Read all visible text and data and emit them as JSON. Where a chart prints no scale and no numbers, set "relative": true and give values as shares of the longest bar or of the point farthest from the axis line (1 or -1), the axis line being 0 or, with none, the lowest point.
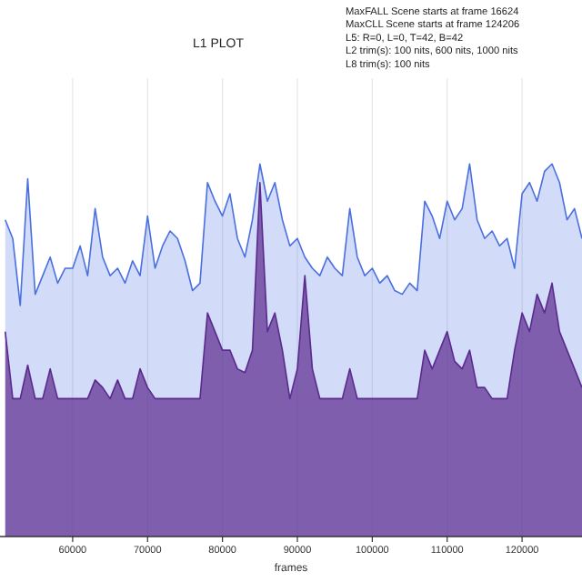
{
  "chart_data": {
    "type": "area",
    "title": "L1 PLOT",
    "xlabel": "frames",
    "relative": true,
    "grid": "x",
    "annotations": [
      "MaxFALL Scene starts at frame 16624",
      "MaxCLL Scene starts at frame 124206",
      "L5: R=0, L=0, T=42, B=42",
      "L2 trim(s): 100 nits, 600 nits, 1000 nits",
      "L8 trim(s): 100 nits"
    ],
    "xlim": [
      50300,
      128000
    ],
    "xticks": [
      60000,
      70000,
      80000,
      90000,
      100000,
      110000,
      120000
    ],
    "x": [
      51000,
      52000,
      53000,
      54000,
      55000,
      56000,
      57000,
      58000,
      59000,
      60000,
      61000,
      62000,
      63000,
      64000,
      65000,
      66000,
      67000,
      68000,
      69000,
      70000,
      71000,
      72000,
      73000,
      74000,
      75000,
      76000,
      77000,
      78000,
      79000,
      80000,
      81000,
      82000,
      83000,
      84000,
      85000,
      86000,
      87000,
      88000,
      89000,
      90000,
      91000,
      92000,
      93000,
      94000,
      95000,
      96000,
      97000,
      98000,
      99000,
      100000,
      101000,
      102000,
      103000,
      104000,
      105000,
      106000,
      107000,
      108000,
      109000,
      110000,
      111000,
      112000,
      113000,
      114000,
      115000,
      116000,
      117000,
      118000,
      119000,
      120000,
      121000,
      122000,
      123000,
      124000,
      125000,
      126000,
      127000,
      128000
    ],
    "series": [
      {
        "color": "#4a6fe0",
        "values": [
          0.85,
          0.8,
          0.62,
          0.96,
          0.65,
          0.7,
          0.75,
          0.68,
          0.72,
          0.72,
          0.78,
          0.7,
          0.88,
          0.75,
          0.7,
          0.72,
          0.68,
          0.74,
          0.7,
          0.86,
          0.72,
          0.78,
          0.82,
          0.8,
          0.74,
          0.66,
          0.68,
          0.95,
          0.9,
          0.86,
          0.92,
          0.8,
          0.75,
          0.85,
          1.0,
          0.9,
          0.95,
          0.85,
          0.78,
          0.8,
          0.75,
          0.72,
          0.7,
          0.75,
          0.72,
          0.7,
          0.88,
          0.75,
          0.7,
          0.72,
          0.68,
          0.7,
          0.66,
          0.65,
          0.68,
          0.66,
          0.9,
          0.86,
          0.8,
          0.9,
          0.85,
          0.88,
          1.0,
          0.85,
          0.8,
          0.82,
          0.78,
          0.8,
          0.72,
          0.92,
          0.95,
          0.9,
          0.98,
          1.0,
          0.95,
          0.85,
          0.88,
          0.8
        ]
      },
      {
        "color": "#5b2a8f",
        "values": [
          0.55,
          0.37,
          0.37,
          0.46,
          0.37,
          0.37,
          0.45,
          0.37,
          0.37,
          0.37,
          0.37,
          0.37,
          0.42,
          0.4,
          0.37,
          0.42,
          0.37,
          0.37,
          0.45,
          0.4,
          0.37,
          0.37,
          0.37,
          0.37,
          0.37,
          0.37,
          0.37,
          0.6,
          0.55,
          0.5,
          0.5,
          0.45,
          0.44,
          0.5,
          0.95,
          0.55,
          0.6,
          0.5,
          0.37,
          0.45,
          0.7,
          0.45,
          0.37,
          0.37,
          0.37,
          0.37,
          0.45,
          0.37,
          0.37,
          0.37,
          0.37,
          0.37,
          0.37,
          0.37,
          0.37,
          0.37,
          0.5,
          0.45,
          0.5,
          0.55,
          0.47,
          0.45,
          0.5,
          0.4,
          0.4,
          0.37,
          0.37,
          0.37,
          0.5,
          0.6,
          0.55,
          0.65,
          0.6,
          0.68,
          0.55,
          0.5,
          0.45,
          0.4
        ]
      }
    ]
  }
}
